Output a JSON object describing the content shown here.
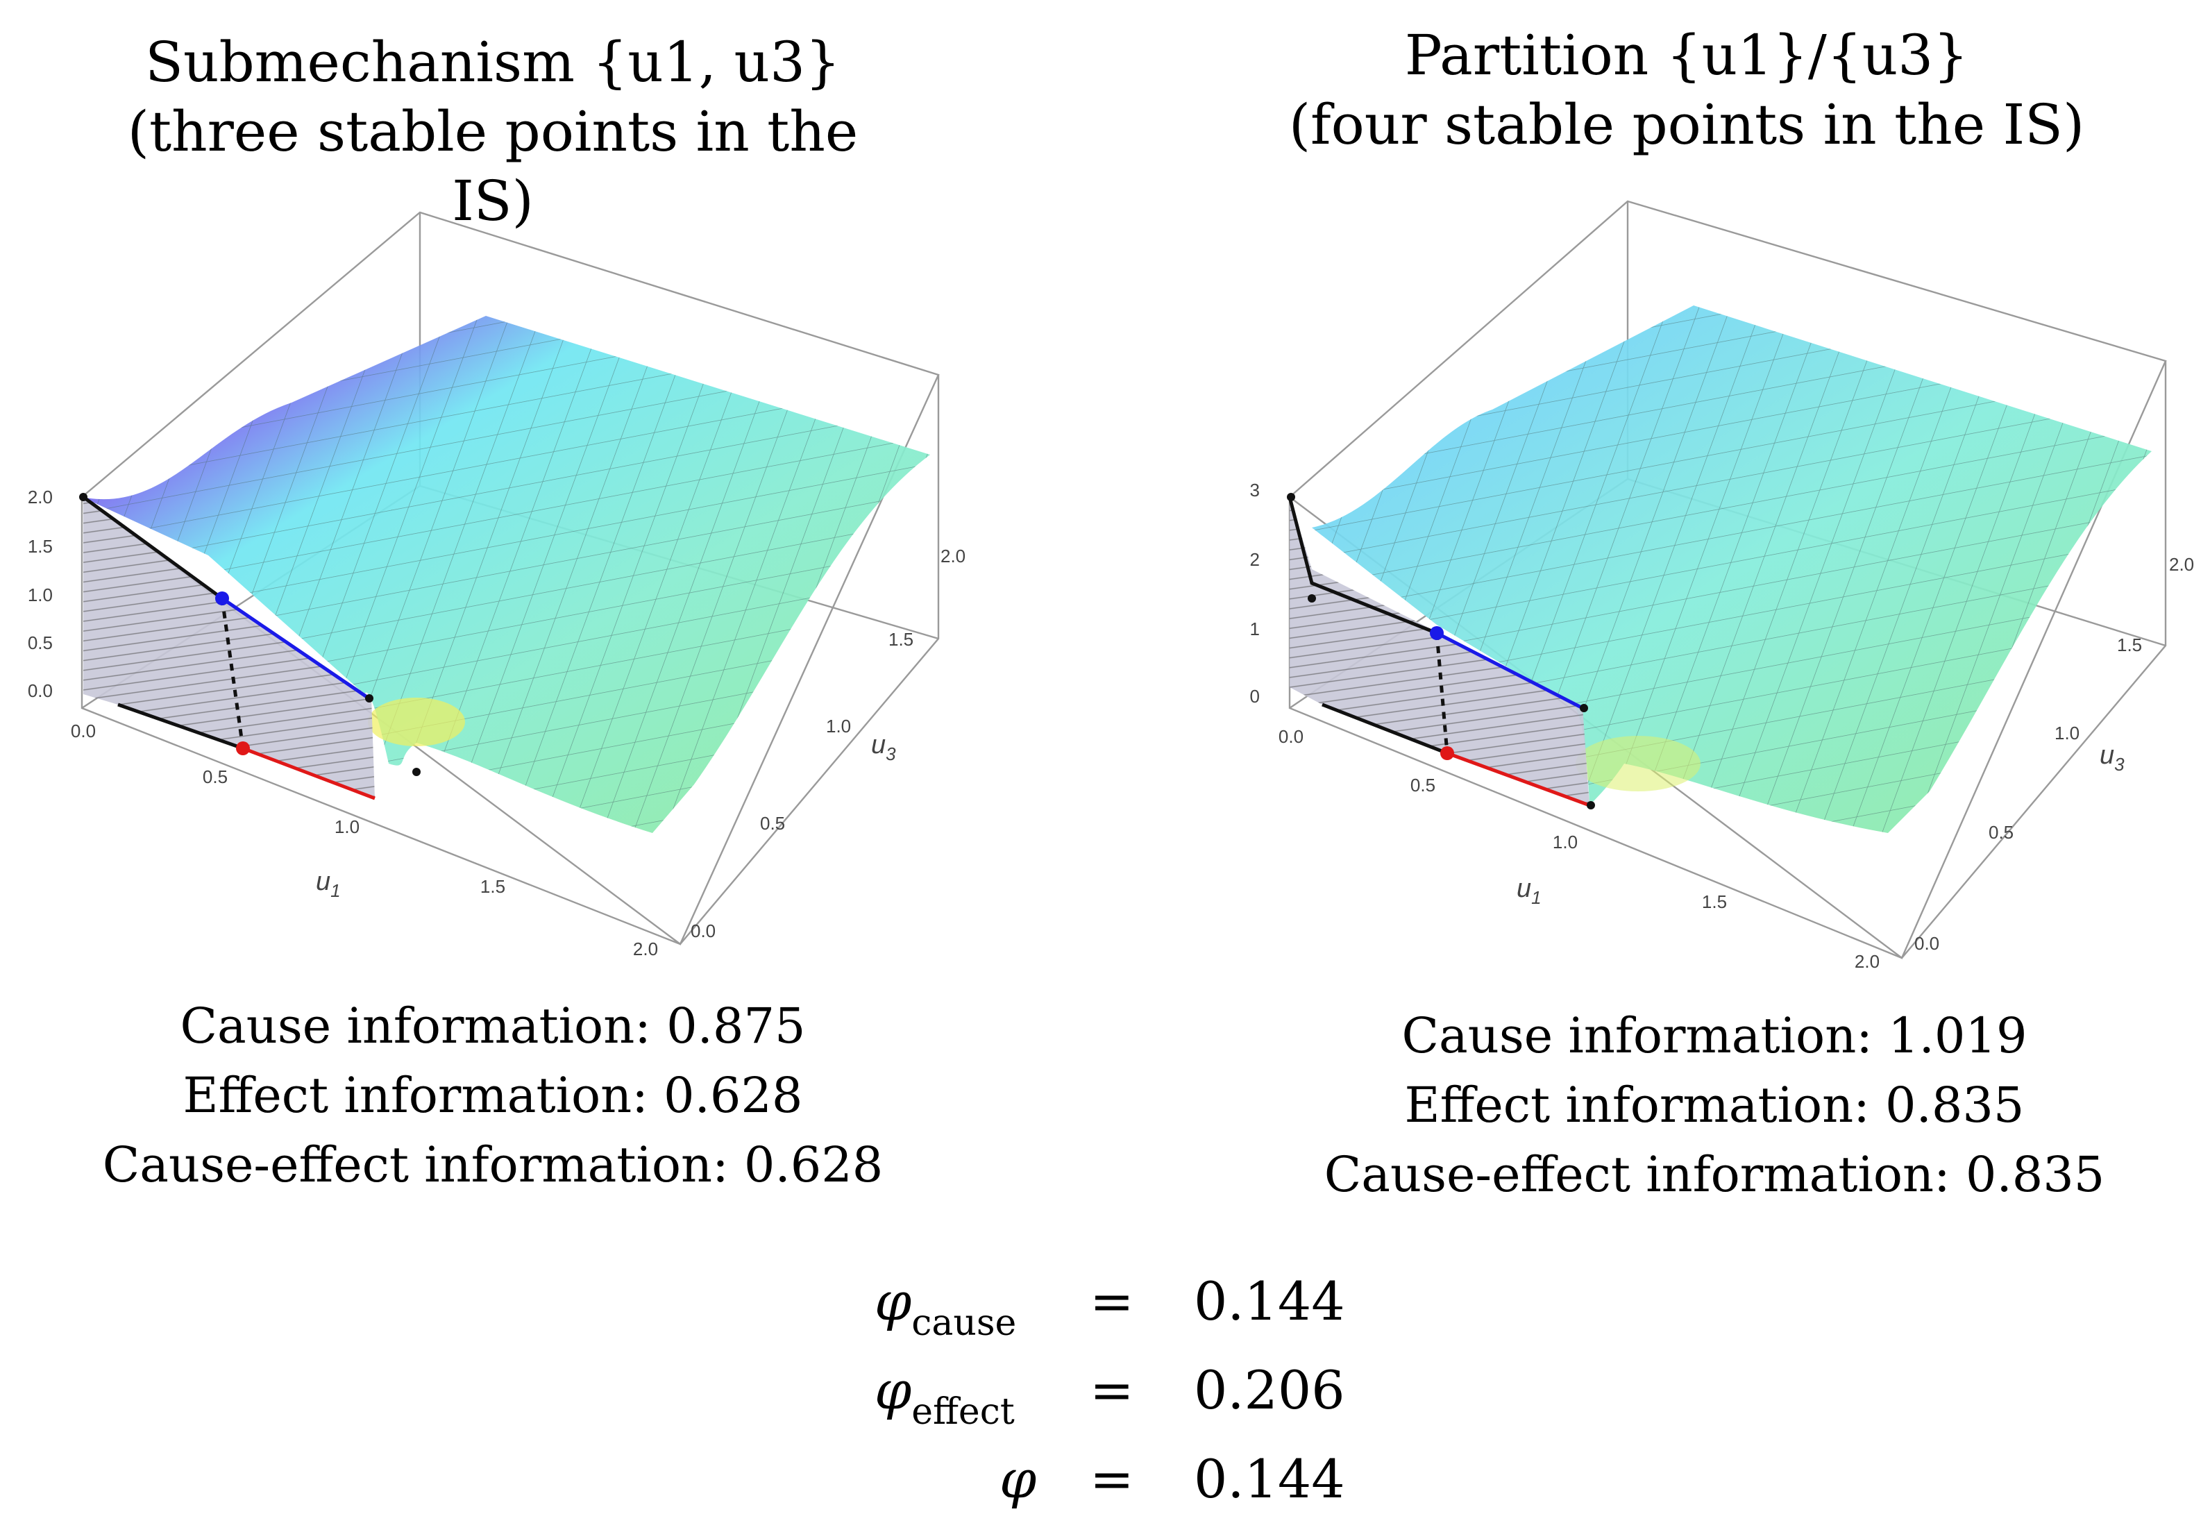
{
  "colors": {
    "surface_a": "#7ff0ee",
    "surface_b": "#9be88a",
    "peak": "#e86fe8",
    "red": "#e01818",
    "blue": "#1a1ae8",
    "box": "#9a9a9a"
  },
  "left": {
    "title_line1": "Submechanism {u1, u3}",
    "title_line2": "(three stable points in the IS)",
    "info": {
      "cause": "Cause information: 0.875",
      "effect": "Effect information: 0.628",
      "cause_effect": "Cause-effect information: 0.628"
    }
  },
  "right": {
    "title_line1": "Partition {u1}/{u3}",
    "title_line2": "(four stable points in the IS)",
    "info": {
      "cause": "Cause information: 1.019",
      "effect": "Effect information: 0.835",
      "cause_effect": "Cause-effect information: 0.835"
    }
  },
  "phi": {
    "rows": [
      {
        "symbol": "φ",
        "sub": "cause",
        "eq": "=",
        "value": "0.144"
      },
      {
        "symbol": "φ",
        "sub": "effect",
        "eq": "=",
        "value": "0.206"
      },
      {
        "symbol": "φ",
        "sub": "",
        "eq": "=",
        "value": "0.144"
      }
    ]
  },
  "chart_data": [
    {
      "type": "surface3d",
      "title": "Submechanism {u1, u3} (three stable points in the IS)",
      "xlabel": "u1",
      "ylabel": "u3",
      "x_ticks": [
        "0.0",
        "0.5",
        "1.0",
        "1.5",
        "2.0"
      ],
      "y_ticks": [
        "0.0",
        "0.5",
        "1.0",
        "1.5",
        "2.0"
      ],
      "z_ticks": [
        "0.0",
        "0.5",
        "1.0",
        "1.5",
        "2.0"
      ],
      "xlim": [
        0,
        2
      ],
      "ylim": [
        0,
        2
      ],
      "zlim": [
        0,
        2
      ],
      "highlight": {
        "blue_point": {
          "u1": 0.5,
          "value": 1.0
        },
        "red_point": {
          "u1": 0.5,
          "value": 0.0
        }
      }
    },
    {
      "type": "surface3d",
      "title": "Partition {u1}/{u3} (four stable points in the IS)",
      "xlabel": "u1",
      "ylabel": "u3",
      "x_ticks": [
        "0.0",
        "0.5",
        "1.0",
        "1.5",
        "2.0"
      ],
      "y_ticks": [
        "0.0",
        "0.5",
        "1.0",
        "1.5",
        "2.0"
      ],
      "z_ticks": [
        "0",
        "1",
        "2",
        "3"
      ],
      "xlim": [
        0,
        2
      ],
      "ylim": [
        0,
        2
      ],
      "zlim": [
        0,
        3
      ],
      "highlight": {
        "blue_point": {
          "u1": 0.5,
          "value": 1.0
        },
        "red_point": {
          "u1": 0.5,
          "value": 0.0
        }
      }
    }
  ]
}
